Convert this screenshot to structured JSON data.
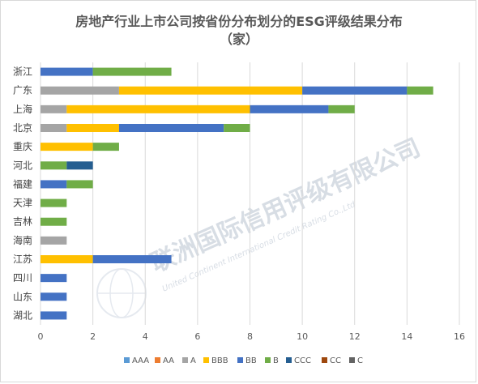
{
  "chart_data": {
    "type": "bar",
    "orientation": "horizontal",
    "stacked": true,
    "title_lines": [
      "房地产行业上市公司按省份分布划分的ESG评级结果分布",
      "（家）"
    ],
    "categories": [
      "浙江",
      "广东",
      "上海",
      "北京",
      "重庆",
      "河北",
      "福建",
      "天津",
      "吉林",
      "海南",
      "江苏",
      "四川",
      "山东",
      "湖北"
    ],
    "series": [
      {
        "name": "AAA",
        "color": "#5b9bd5",
        "values": [
          0,
          0,
          0,
          0,
          0,
          0,
          0,
          0,
          0,
          0,
          0,
          0,
          0,
          0
        ]
      },
      {
        "name": "AA",
        "color": "#ed7d31",
        "values": [
          0,
          0,
          0,
          0,
          0,
          0,
          0,
          0,
          0,
          0,
          0,
          0,
          0,
          0
        ]
      },
      {
        "name": "A",
        "color": "#a5a5a5",
        "values": [
          0,
          3,
          1,
          1,
          0,
          0,
          0,
          0,
          0,
          1,
          0,
          0,
          0,
          0
        ]
      },
      {
        "name": "BBB",
        "color": "#ffc000",
        "values": [
          0,
          7,
          7,
          2,
          2,
          0,
          0,
          0,
          0,
          0,
          2,
          0,
          0,
          0
        ]
      },
      {
        "name": "BB",
        "color": "#4472c4",
        "values": [
          2,
          4,
          3,
          4,
          0,
          0,
          1,
          0,
          0,
          0,
          3,
          1,
          1,
          1
        ]
      },
      {
        "name": "B",
        "color": "#70ad47",
        "values": [
          3,
          1,
          1,
          1,
          1,
          1,
          1,
          1,
          1,
          0,
          0,
          0,
          0,
          0
        ]
      },
      {
        "name": "CCC",
        "color": "#255e91",
        "values": [
          0,
          0,
          0,
          0,
          0,
          1,
          0,
          0,
          0,
          0,
          0,
          0,
          0,
          0
        ]
      },
      {
        "name": "CC",
        "color": "#9e480e",
        "values": [
          0,
          0,
          0,
          0,
          0,
          0,
          0,
          0,
          0,
          0,
          0,
          0,
          0,
          0
        ]
      },
      {
        "name": "C",
        "color": "#636363",
        "values": [
          0,
          0,
          0,
          0,
          0,
          0,
          0,
          0,
          0,
          0,
          0,
          0,
          0,
          0
        ]
      }
    ],
    "xlim": [
      0,
      16
    ],
    "xticks": [
      "0",
      "2",
      "4",
      "6",
      "8",
      "10",
      "12",
      "14",
      "16"
    ],
    "grid": true,
    "legend_position": "bottom"
  },
  "watermark": {
    "text_cn": "联洲国际信用评级有限公司",
    "text_en": "United Continent International Credit Rating Co.,Ltd"
  }
}
